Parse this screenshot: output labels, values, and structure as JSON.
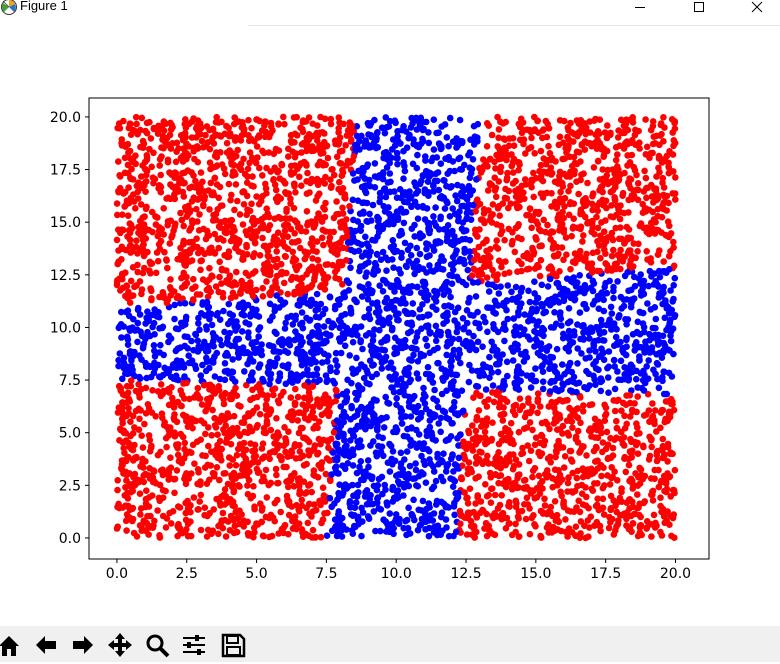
{
  "window": {
    "title": "Figure 1",
    "controls": [
      "minimize",
      "maximize",
      "close"
    ]
  },
  "toolbar": {
    "tools": [
      {
        "name": "home",
        "icon": "home-icon"
      },
      {
        "name": "back",
        "icon": "arrow-left-icon"
      },
      {
        "name": "forward",
        "icon": "arrow-right-icon"
      },
      {
        "name": "pan",
        "icon": "move-icon"
      },
      {
        "name": "zoom",
        "icon": "magnifier-icon"
      },
      {
        "name": "subplots",
        "icon": "sliders-icon"
      },
      {
        "name": "save",
        "icon": "floppy-disk-icon"
      }
    ]
  },
  "colors": {
    "outside_cross": "#ff0000",
    "cross": "#0000ff",
    "axes_edge": "#000000",
    "toolbar_bg": "#f0f0f0"
  },
  "chart_data": {
    "type": "scatter",
    "title": "",
    "xlabel": "",
    "ylabel": "",
    "xlim": [
      -1,
      21.2
    ],
    "ylim": [
      -1,
      20.9
    ],
    "xticks": [
      "0.0",
      "2.5",
      "5.0",
      "7.5",
      "10.0",
      "12.5",
      "15.0",
      "17.5",
      "20.0"
    ],
    "yticks": [
      "0.0",
      "2.5",
      "5.0",
      "7.5",
      "10.0",
      "12.5",
      "15.0",
      "17.5",
      "20.0"
    ],
    "grid": false,
    "legend": "none",
    "point_count": 6000,
    "point_domain": {
      "x": [
        0,
        20
      ],
      "y": [
        0,
        20
      ]
    },
    "series": [
      {
        "color": "#0000ff",
        "description_of_region": "cross band",
        "vertical_band_x_bounds_at_y": [
          {
            "y": 0,
            "x_left": 7.5,
            "x_right": 12.2
          },
          {
            "y": 20,
            "x_left": 8.6,
            "x_right": 13.0
          }
        ],
        "horizontal_band_y_bounds_at_x": [
          {
            "x": 0,
            "y_bottom": 7.5,
            "y_top": 11.0
          },
          {
            "x": 20,
            "y_bottom": 6.8,
            "y_top": 12.8
          }
        ]
      },
      {
        "color": "#ff0000",
        "description_of_region": "four corner blocks"
      }
    ]
  }
}
